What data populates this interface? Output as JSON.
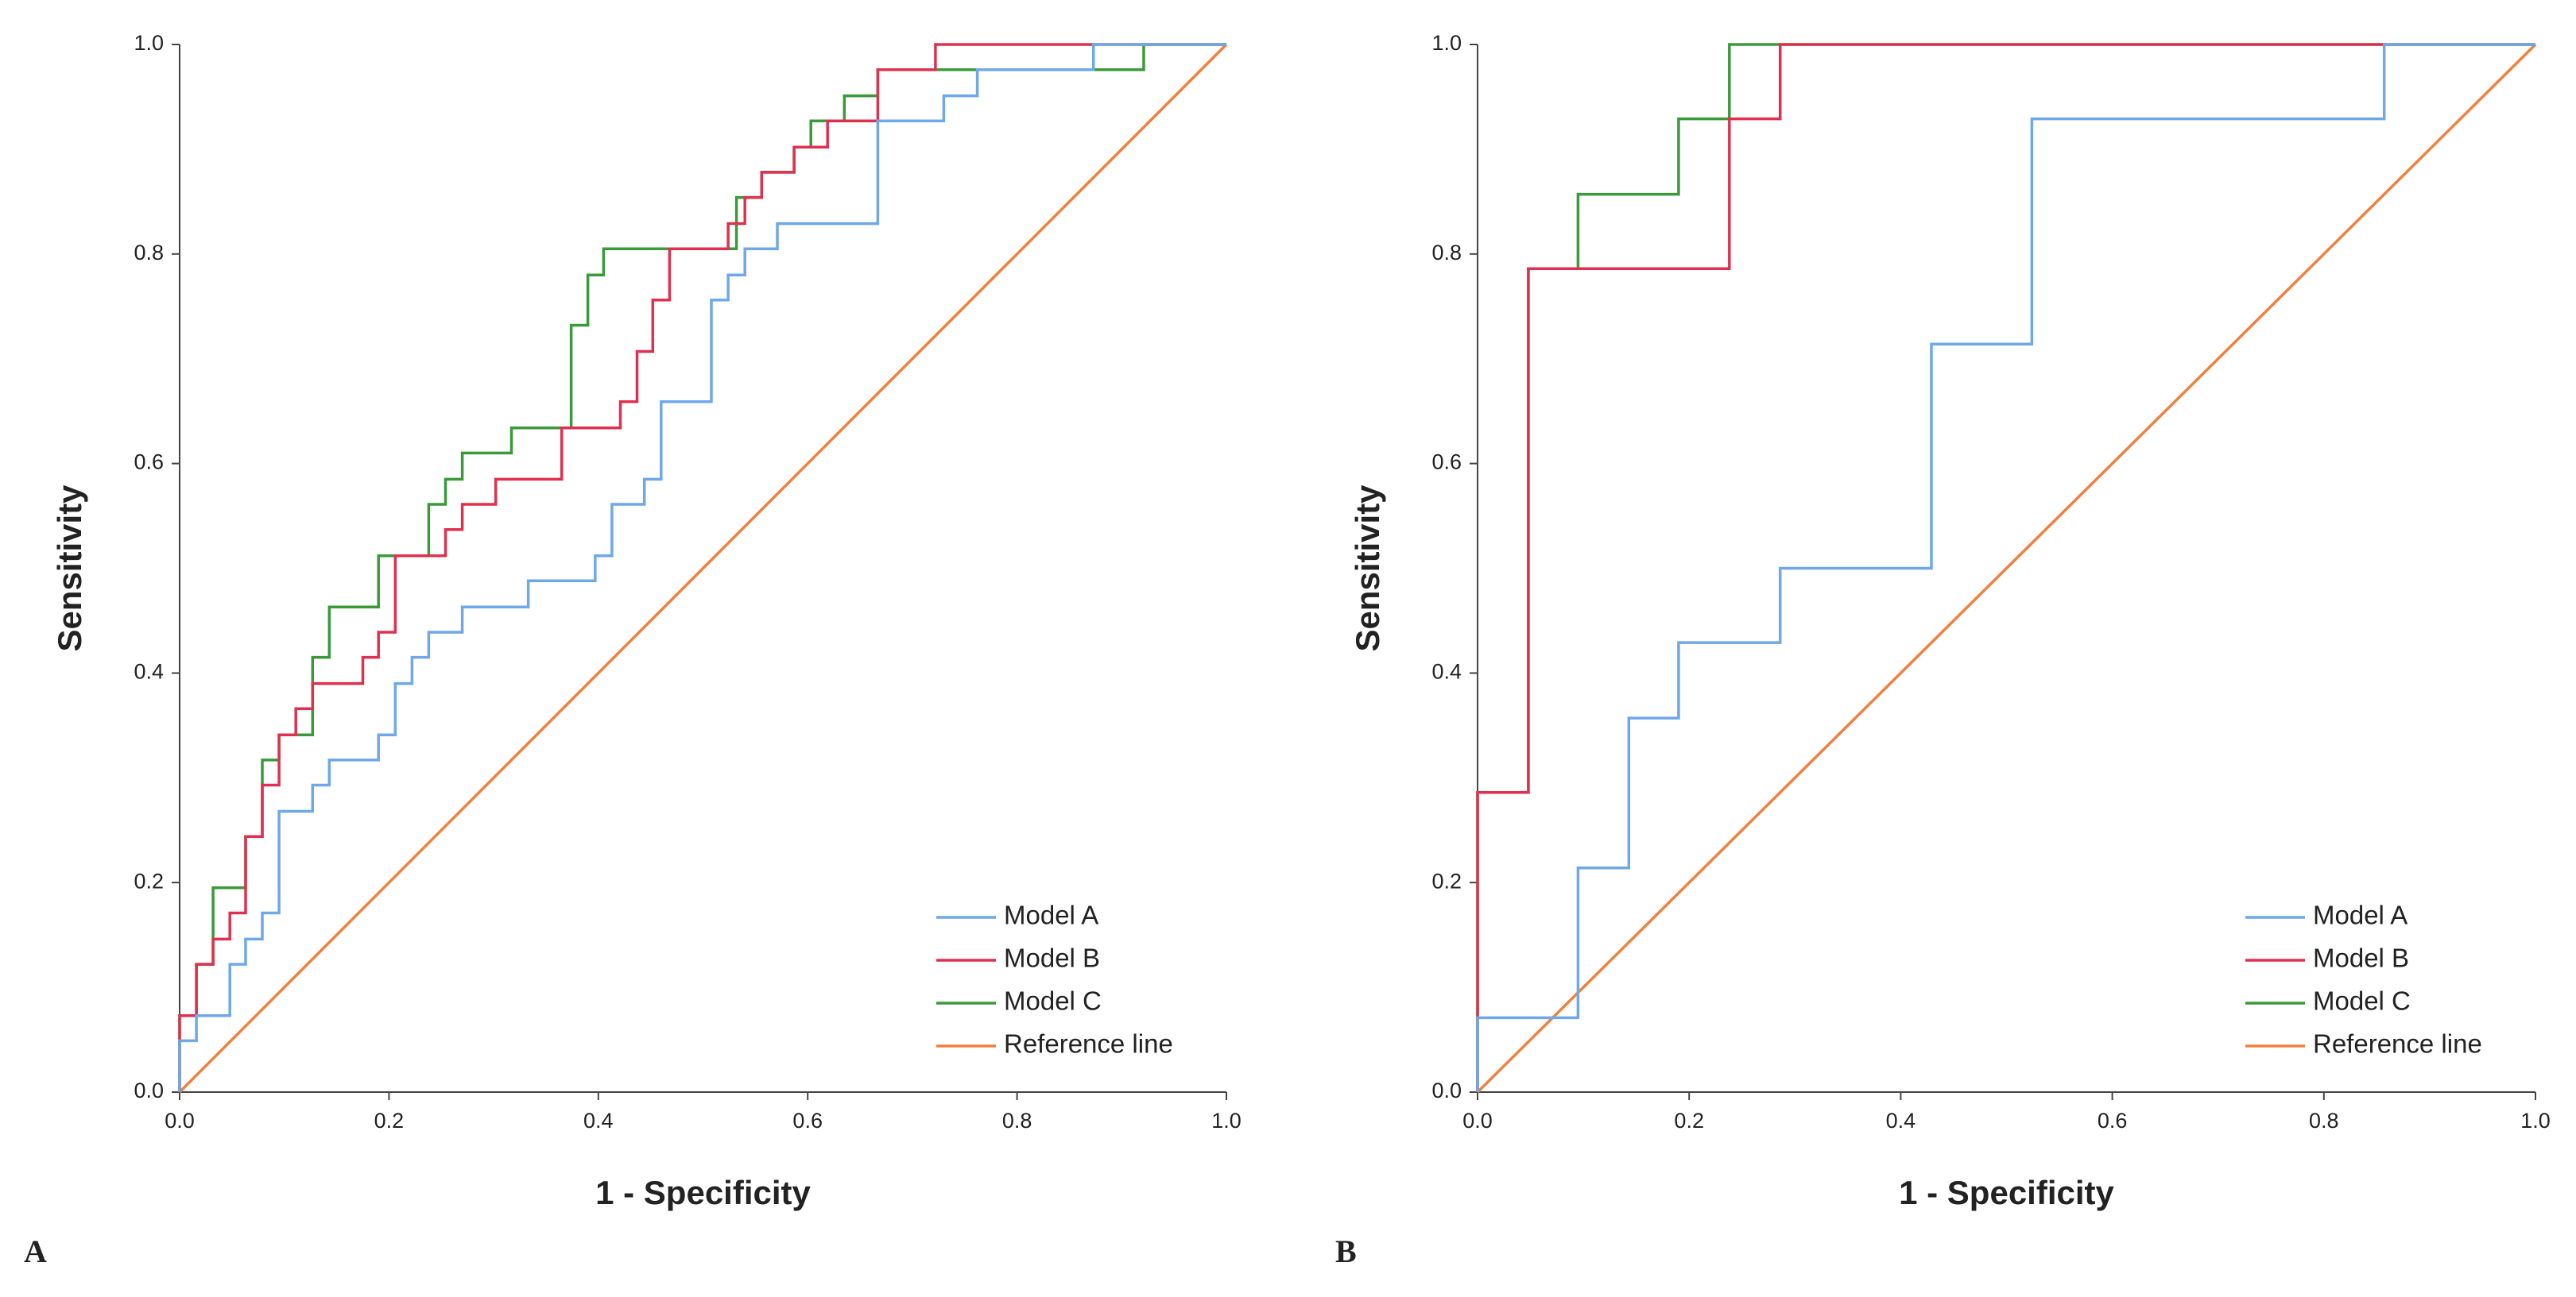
{
  "chart_data": [
    {
      "type": "line",
      "label": "A",
      "xlabel": "1 - Specificity",
      "ylabel": "Sensitivity",
      "xlim": [
        0,
        1
      ],
      "ylim": [
        0,
        1
      ],
      "xticks": [
        {
          "value": 0,
          "label": "0.0"
        },
        0.2,
        0.4,
        0.6,
        0.8,
        {
          "value": 1,
          "label": "1.0"
        }
      ],
      "yticks": [
        {
          "value": 0,
          "label": "0.0"
        },
        0.2,
        0.4,
        0.6,
        0.8,
        {
          "value": 1,
          "label": "1.0"
        }
      ],
      "legend": "lower right",
      "series": [
        {
          "name": "Model A",
          "color": "#6fa8e8",
          "x": [
            0,
            0,
            0.016,
            0.016,
            0.048,
            0.048,
            0.063,
            0.063,
            0.079,
            0.079,
            0.095,
            0.095,
            0.127,
            0.127,
            0.143,
            0.143,
            0.19,
            0.19,
            0.206,
            0.206,
            0.222,
            0.222,
            0.238,
            0.238,
            0.27,
            0.27,
            0.333,
            0.333,
            0.397,
            0.397,
            0.413,
            0.413,
            0.444,
            0.444,
            0.46,
            0.46,
            0.508,
            0.508,
            0.524,
            0.524,
            0.54,
            0.54,
            0.571,
            0.571,
            0.667,
            0.667,
            0.73,
            0.73,
            0.762,
            0.762,
            0.873,
            0.873,
            1
          ],
          "values": [
            0,
            0.049,
            0.049,
            0.073,
            0.073,
            0.122,
            0.122,
            0.146,
            0.146,
            0.171,
            0.171,
            0.268,
            0.268,
            0.293,
            0.293,
            0.317,
            0.317,
            0.341,
            0.341,
            0.39,
            0.39,
            0.415,
            0.415,
            0.439,
            0.439,
            0.463,
            0.463,
            0.488,
            0.488,
            0.512,
            0.512,
            0.561,
            0.561,
            0.585,
            0.585,
            0.659,
            0.659,
            0.756,
            0.756,
            0.78,
            0.78,
            0.805,
            0.805,
            0.829,
            0.829,
            0.927,
            0.927,
            0.951,
            0.951,
            0.976,
            0.976,
            1,
            1
          ]
        },
        {
          "name": "Model B",
          "color": "#e0304f",
          "x": [
            0,
            0,
            0.016,
            0.016,
            0.032,
            0.032,
            0.048,
            0.048,
            0.063,
            0.063,
            0.079,
            0.079,
            0.095,
            0.095,
            0.111,
            0.111,
            0.127,
            0.127,
            0.175,
            0.175,
            0.19,
            0.19,
            0.206,
            0.206,
            0.254,
            0.254,
            0.27,
            0.27,
            0.302,
            0.302,
            0.365,
            0.365,
            0.421,
            0.421,
            0.437,
            0.437,
            0.452,
            0.452,
            0.468,
            0.468,
            0.524,
            0.524,
            0.54,
            0.54,
            0.556,
            0.556,
            0.587,
            0.587,
            0.619,
            0.619,
            0.667,
            0.667,
            0.722,
            0.722,
            1
          ],
          "values": [
            0,
            0.073,
            0.073,
            0.122,
            0.122,
            0.146,
            0.146,
            0.171,
            0.171,
            0.244,
            0.244,
            0.293,
            0.293,
            0.341,
            0.341,
            0.366,
            0.366,
            0.39,
            0.39,
            0.415,
            0.415,
            0.439,
            0.439,
            0.512,
            0.512,
            0.537,
            0.537,
            0.561,
            0.561,
            0.585,
            0.585,
            0.634,
            0.634,
            0.659,
            0.659,
            0.707,
            0.707,
            0.756,
            0.756,
            0.805,
            0.805,
            0.829,
            0.829,
            0.854,
            0.854,
            0.878,
            0.878,
            0.902,
            0.902,
            0.927,
            0.927,
            0.976,
            0.976,
            1,
            1
          ]
        },
        {
          "name": "Model C",
          "color": "#3a9a3a",
          "x": [
            0,
            0,
            0.016,
            0.016,
            0.032,
            0.032,
            0.063,
            0.063,
            0.079,
            0.079,
            0.095,
            0.095,
            0.127,
            0.127,
            0.143,
            0.143,
            0.19,
            0.19,
            0.238,
            0.238,
            0.254,
            0.254,
            0.27,
            0.27,
            0.317,
            0.317,
            0.374,
            0.374,
            0.39,
            0.39,
            0.405,
            0.405,
            0.532,
            0.532,
            0.556,
            0.556,
            0.587,
            0.587,
            0.603,
            0.603,
            0.635,
            0.635,
            0.667,
            0.667,
            0.921,
            0.921,
            1
          ],
          "values": [
            0,
            0.073,
            0.073,
            0.122,
            0.122,
            0.195,
            0.195,
            0.244,
            0.244,
            0.317,
            0.317,
            0.341,
            0.341,
            0.415,
            0.415,
            0.463,
            0.463,
            0.512,
            0.512,
            0.561,
            0.561,
            0.585,
            0.585,
            0.61,
            0.61,
            0.634,
            0.634,
            0.732,
            0.732,
            0.78,
            0.78,
            0.805,
            0.805,
            0.854,
            0.854,
            0.878,
            0.878,
            0.902,
            0.902,
            0.927,
            0.927,
            0.951,
            0.951,
            0.976,
            0.976,
            1,
            1
          ]
        },
        {
          "name": "Reference line",
          "color": "#f08040",
          "x": [
            0,
            1
          ],
          "values": [
            0,
            1
          ]
        }
      ]
    },
    {
      "type": "line",
      "label": "B",
      "xlabel": "1 - Specificity",
      "ylabel": "Sensitivity",
      "xlim": [
        0,
        1
      ],
      "ylim": [
        0,
        1
      ],
      "xticks": [
        {
          "value": 0,
          "label": "0.0"
        },
        0.2,
        0.4,
        0.6,
        0.8,
        {
          "value": 1,
          "label": "1.0"
        }
      ],
      "yticks": [
        {
          "value": 0,
          "label": "0.0"
        },
        0.2,
        0.4,
        0.6,
        0.8,
        {
          "value": 1,
          "label": "1.0"
        }
      ],
      "legend": "lower right",
      "series": [
        {
          "name": "Model A",
          "color": "#6fa8e8",
          "x": [
            0,
            0,
            0.095,
            0.095,
            0.143,
            0.143,
            0.19,
            0.19,
            0.286,
            0.286,
            0.429,
            0.429,
            0.524,
            0.524,
            0.857,
            0.857,
            1
          ],
          "values": [
            0,
            0.071,
            0.071,
            0.214,
            0.214,
            0.357,
            0.357,
            0.429,
            0.429,
            0.5,
            0.5,
            0.714,
            0.714,
            0.929,
            0.929,
            1,
            1
          ]
        },
        {
          "name": "Model B",
          "color": "#e0304f",
          "x": [
            0,
            0,
            0.048,
            0.048,
            0.238,
            0.238,
            0.286,
            0.286,
            1
          ],
          "values": [
            0,
            0.286,
            0.286,
            0.786,
            0.786,
            0.929,
            0.929,
            1,
            1
          ]
        },
        {
          "name": "Model C",
          "color": "#3a9a3a",
          "x": [
            0,
            0,
            0.048,
            0.048,
            0.095,
            0.095,
            0.19,
            0.19,
            0.238,
            0.238,
            1
          ],
          "values": [
            0,
            0.286,
            0.286,
            0.786,
            0.786,
            0.857,
            0.857,
            0.929,
            0.929,
            1,
            1
          ]
        },
        {
          "name": "Reference line",
          "color": "#f08040",
          "x": [
            0,
            1
          ],
          "values": [
            0,
            1
          ]
        }
      ]
    }
  ]
}
